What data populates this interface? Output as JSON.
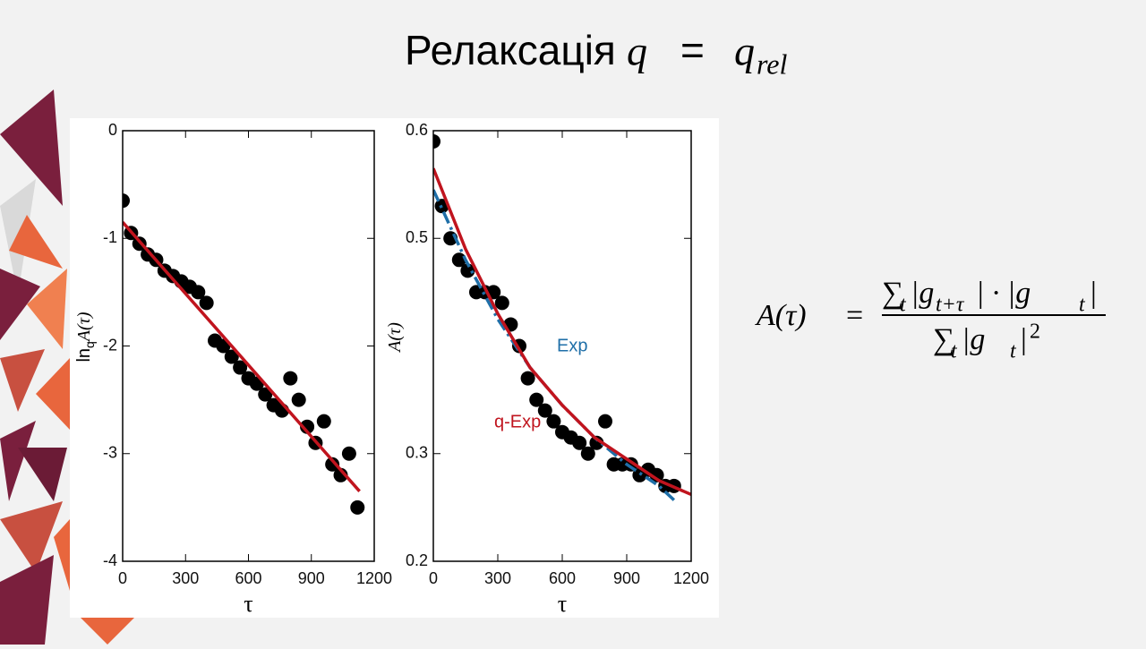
{
  "slide": {
    "title": [
      "Релаксація",
      "q",
      "=",
      "q",
      "rel"
    ]
  },
  "formula": {
    "lhs": [
      "A(τ)",
      "="
    ],
    "num": [
      "∑",
      "t",
      "|g",
      "t+τ",
      "| · |g",
      "t",
      "|"
    ],
    "den": [
      "∑",
      "t",
      "|g",
      "t",
      "|",
      "2"
    ]
  },
  "chart_data": [
    {
      "type": "scatter",
      "x_label": "τ",
      "y_label": [
        "ln",
        "q",
        "A(τ)"
      ],
      "xlim": [
        0,
        1200
      ],
      "xticks": [
        0,
        300,
        600,
        900,
        1200
      ],
      "ylim": [
        -4,
        0
      ],
      "yticks": [
        0,
        -1,
        -2,
        -3,
        -4
      ],
      "series": [
        {
          "mode": "markers",
          "color": "#000000",
          "x": [
            0,
            40,
            80,
            120,
            160,
            200,
            240,
            280,
            320,
            360,
            400,
            440,
            480,
            520,
            560,
            600,
            640,
            680,
            720,
            760,
            800,
            840,
            880,
            920,
            960,
            1000,
            1040,
            1080,
            1120
          ],
          "values": [
            -0.65,
            -0.95,
            -1.05,
            -1.15,
            -1.2,
            -1.3,
            -1.35,
            -1.4,
            -1.45,
            -1.5,
            -1.6,
            -1.95,
            -2.0,
            -2.1,
            -2.2,
            -2.3,
            -2.35,
            -2.45,
            -2.55,
            -2.6,
            -2.3,
            -2.5,
            -2.75,
            -2.9,
            -2.7,
            -3.1,
            -3.2,
            -3.0,
            -3.5
          ]
        },
        {
          "mode": "line",
          "color": "#c0141e",
          "x": [
            0,
            1130
          ],
          "values": [
            -0.85,
            -3.35
          ]
        }
      ]
    },
    {
      "type": "scatter",
      "x_label": "τ",
      "y_label": [
        "A(τ)"
      ],
      "xlim": [
        0,
        1200
      ],
      "xticks": [
        0,
        300,
        600,
        900,
        1200
      ],
      "ylim": [
        0.2,
        0.6
      ],
      "yticks": [
        0.2,
        0.3,
        0.5,
        0.6
      ],
      "series": [
        {
          "mode": "markers",
          "color": "#000000",
          "x": [
            0,
            40,
            80,
            120,
            160,
            200,
            240,
            280,
            320,
            360,
            400,
            440,
            480,
            520,
            560,
            600,
            640,
            680,
            720,
            760,
            800,
            840,
            880,
            920,
            960,
            1000,
            1040,
            1080,
            1120
          ],
          "values": [
            0.59,
            0.53,
            0.5,
            0.48,
            0.47,
            0.45,
            0.45,
            0.45,
            0.44,
            0.42,
            0.4,
            0.37,
            0.35,
            0.34,
            0.33,
            0.32,
            0.315,
            0.31,
            0.3,
            0.31,
            0.33,
            0.29,
            0.29,
            0.29,
            0.28,
            0.285,
            0.28,
            0.27,
            0.27
          ]
        },
        {
          "mode": "line",
          "name": "Exp",
          "dash": true,
          "color": "#1f6fa8",
          "x": [
            0,
            150,
            300,
            450,
            600,
            750,
            900,
            1050,
            1130
          ],
          "values": [
            0.545,
            0.48,
            0.425,
            0.38,
            0.345,
            0.315,
            0.29,
            0.27,
            0.255
          ]
        },
        {
          "mode": "line",
          "name": "q-Exp",
          "color": "#c0141e",
          "x": [
            0,
            150,
            300,
            450,
            600,
            750,
            900,
            1050,
            1200
          ],
          "values": [
            0.565,
            0.49,
            0.43,
            0.38,
            0.345,
            0.315,
            0.295,
            0.275,
            0.262
          ]
        }
      ]
    }
  ]
}
